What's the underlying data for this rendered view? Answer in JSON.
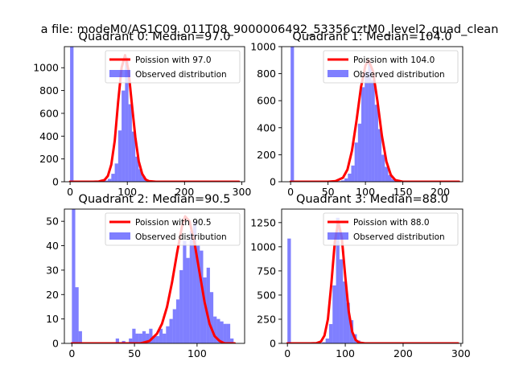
{
  "suptitle": "a file: modeM0/AS1C09_011T08_9000006492_53356cztM0_level2_quad_clean",
  "colors": {
    "hist": "#0000ff",
    "poisson": "#ff0000",
    "axes": "#000000"
  },
  "chart_data": [
    {
      "type": "bar",
      "title": "Quadrant 0: Median=97.0",
      "median": 97.0,
      "xlim": [
        -10,
        305
      ],
      "ylim": [
        0,
        1185
      ],
      "xticks": [
        0,
        100,
        200,
        300
      ],
      "yticks": [
        0,
        200,
        400,
        600,
        800,
        1000
      ],
      "legend": {
        "placement": "top-right",
        "poisson_label": "Poission with 97.0",
        "hist_label": "Observed distribution"
      },
      "bin_width": 6,
      "bins": [
        [
          0,
          1185
        ],
        [
          48,
          3
        ],
        [
          54,
          5
        ],
        [
          60,
          10
        ],
        [
          66,
          25
        ],
        [
          72,
          70
        ],
        [
          78,
          160
        ],
        [
          84,
          450
        ],
        [
          90,
          800
        ],
        [
          96,
          1090
        ],
        [
          102,
          680
        ],
        [
          108,
          440
        ],
        [
          114,
          220
        ],
        [
          120,
          110
        ],
        [
          126,
          45
        ],
        [
          132,
          15
        ],
        [
          138,
          6
        ],
        [
          144,
          2
        ]
      ],
      "poisson_curve": {
        "x": [
          0,
          40,
          50,
          60,
          66,
          72,
          78,
          84,
          90,
          96,
          102,
          108,
          114,
          120,
          126,
          132,
          138,
          150,
          200,
          295
        ],
        "y": [
          0,
          0,
          2,
          15,
          50,
          150,
          360,
          700,
          1000,
          1110,
          980,
          680,
          390,
          180,
          70,
          20,
          5,
          0,
          0,
          0
        ]
      }
    },
    {
      "type": "bar",
      "title": "Quadrant 1: Median=104.0",
      "median": 104.0,
      "xlim": [
        -12,
        230
      ],
      "ylim": [
        0,
        1000
      ],
      "xticks": [
        0,
        50,
        100,
        150,
        200
      ],
      "yticks": [
        0,
        200,
        400,
        600,
        800,
        1000
      ],
      "legend": {
        "placement": "top-right",
        "poisson_label": "Poission with 104.0",
        "hist_label": "Observed distribution"
      },
      "bin_width": 4.5,
      "bins": [
        [
          0,
          1000
        ],
        [
          63,
          5
        ],
        [
          67.5,
          10
        ],
        [
          72,
          25
        ],
        [
          76.5,
          60
        ],
        [
          81,
          120
        ],
        [
          85.5,
          290
        ],
        [
          90,
          430
        ],
        [
          94.5,
          700
        ],
        [
          99,
          820
        ],
        [
          103.5,
          890
        ],
        [
          108,
          750
        ],
        [
          112.5,
          570
        ],
        [
          117,
          390
        ],
        [
          121.5,
          200
        ],
        [
          126,
          110
        ],
        [
          130.5,
          50
        ],
        [
          135,
          20
        ],
        [
          139.5,
          6
        ]
      ],
      "poisson_curve": {
        "x": [
          0,
          50,
          60,
          70,
          76,
          82,
          88,
          94,
          100,
          104,
          110,
          116,
          122,
          128,
          134,
          140,
          150,
          180,
          225
        ],
        "y": [
          0,
          0,
          5,
          30,
          90,
          230,
          450,
          700,
          860,
          900,
          820,
          600,
          340,
          150,
          50,
          12,
          0,
          0,
          0
        ]
      }
    },
    {
      "type": "bar",
      "title": "Quadrant 2: Median=90.5",
      "median": 90.5,
      "xlim": [
        -6,
        138
      ],
      "ylim": [
        0,
        55
      ],
      "xticks": [
        0,
        50,
        100
      ],
      "yticks": [
        0,
        10,
        20,
        30,
        40,
        50
      ],
      "legend": {
        "placement": "top-right",
        "poisson_label": "Poission with 90.5",
        "hist_label": "Observed distribution"
      },
      "bin_width": 2.7,
      "bins": [
        [
          0,
          55
        ],
        [
          2.7,
          23
        ],
        [
          5.4,
          5
        ],
        [
          35,
          2
        ],
        [
          40,
          1
        ],
        [
          45.5,
          2
        ],
        [
          48.2,
          6
        ],
        [
          50.9,
          4
        ],
        [
          53.6,
          4
        ],
        [
          56.3,
          5
        ],
        [
          59,
          4
        ],
        [
          61.7,
          6
        ],
        [
          64.4,
          3
        ],
        [
          67.1,
          3
        ],
        [
          69.8,
          6
        ],
        [
          72.5,
          4
        ],
        [
          75.2,
          7
        ],
        [
          77.9,
          10
        ],
        [
          80.6,
          14
        ],
        [
          83.3,
          18
        ],
        [
          86,
          30
        ],
        [
          88.7,
          42
        ],
        [
          91.4,
          35
        ],
        [
          94.1,
          46
        ],
        [
          96.8,
          50
        ],
        [
          99.5,
          40
        ],
        [
          102.2,
          38
        ],
        [
          104.9,
          27
        ],
        [
          107.6,
          31
        ],
        [
          110.3,
          21
        ],
        [
          113,
          11
        ],
        [
          115.7,
          10
        ],
        [
          118.4,
          9
        ],
        [
          121.1,
          8
        ],
        [
          123.8,
          8
        ],
        [
          126.5,
          2
        ]
      ],
      "poisson_curve": {
        "x": [
          0,
          55,
          62,
          68,
          72,
          76,
          80,
          84,
          88,
          90.5,
          94,
          98,
          102,
          106,
          110,
          114,
          118,
          122,
          130
        ],
        "y": [
          0,
          0,
          1,
          4,
          8,
          15,
          25,
          37,
          48,
          52,
          50,
          41,
          29,
          17,
          8,
          3,
          1,
          0,
          0
        ]
      }
    },
    {
      "type": "bar",
      "title": "Quadrant 3: Median=88.0",
      "median": 88.0,
      "xlim": [
        -10,
        303
      ],
      "ylim": [
        0,
        1390
      ],
      "xticks": [
        0,
        100,
        200,
        300
      ],
      "yticks": [
        0,
        250,
        500,
        750,
        1000,
        1250
      ],
      "legend": {
        "placement": "top-right",
        "poisson_label": "Poission with 88.0",
        "hist_label": "Observed distribution"
      },
      "bin_width": 6,
      "bins": [
        [
          0,
          1085
        ],
        [
          54,
          4
        ],
        [
          60,
          12
        ],
        [
          66,
          50
        ],
        [
          72,
          200
        ],
        [
          78,
          600
        ],
        [
          84,
          1300
        ],
        [
          90,
          870
        ],
        [
          96,
          640
        ],
        [
          102,
          420
        ],
        [
          108,
          240
        ],
        [
          114,
          95
        ],
        [
          120,
          30
        ],
        [
          126,
          8
        ]
      ],
      "poisson_curve": {
        "x": [
          0,
          40,
          50,
          58,
          64,
          70,
          76,
          82,
          88,
          94,
          100,
          106,
          112,
          118,
          124,
          134,
          150,
          200,
          295
        ],
        "y": [
          0,
          0,
          2,
          20,
          80,
          250,
          620,
          1050,
          1260,
          1090,
          690,
          330,
          120,
          35,
          8,
          0,
          0,
          0,
          0
        ]
      }
    }
  ]
}
